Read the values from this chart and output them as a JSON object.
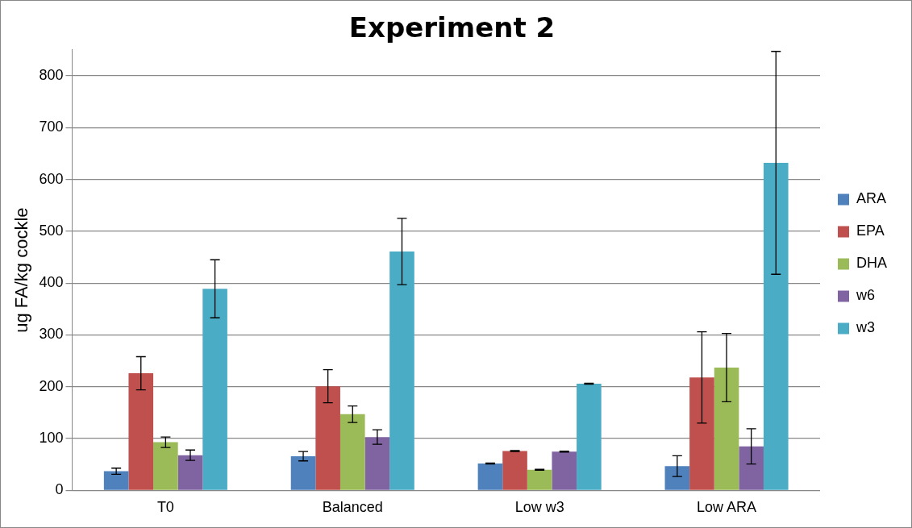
{
  "chart_data": {
    "type": "bar",
    "title": "Experiment 2",
    "ylabel": "ug FA/kg cockle",
    "categories": [
      "T0",
      "Balanced",
      "Low w3",
      "Low ARA"
    ],
    "series": [
      {
        "name": "ARA",
        "color": "#4f81bd",
        "values": [
          37,
          66,
          52,
          47
        ],
        "errors": [
          6,
          9,
          1,
          20
        ]
      },
      {
        "name": "EPA",
        "color": "#c0504d",
        "values": [
          226,
          201,
          76,
          218
        ],
        "errors": [
          32,
          32,
          1,
          88
        ]
      },
      {
        "name": "DHA",
        "color": "#9bbb59",
        "values": [
          93,
          147,
          40,
          237
        ],
        "errors": [
          10,
          16,
          1,
          66
        ]
      },
      {
        "name": "w6",
        "color": "#8064a2",
        "values": [
          68,
          103,
          75,
          85
        ],
        "errors": [
          10,
          14,
          1,
          34
        ]
      },
      {
        "name": "w3",
        "color": "#4bacc6",
        "values": [
          389,
          461,
          206,
          632
        ],
        "errors": [
          56,
          64,
          1,
          215
        ]
      }
    ],
    "ylim": [
      0,
      850
    ],
    "yticks": [
      0,
      100,
      200,
      300,
      400,
      500,
      600,
      700,
      800
    ],
    "grid": "y",
    "legend": "right"
  }
}
